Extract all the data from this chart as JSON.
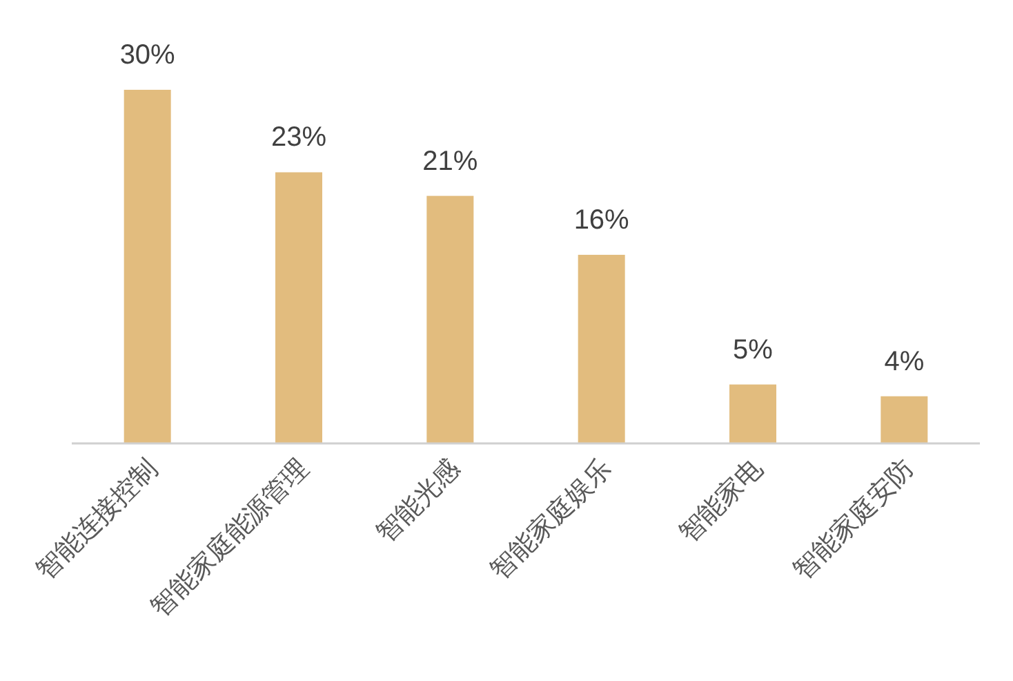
{
  "chart_data": {
    "type": "bar",
    "categories": [
      "智能连接控制",
      "智能家庭能源管理",
      "智能光感",
      "智能家庭娱乐",
      "智能家电",
      "智能家庭安防"
    ],
    "values": [
      30,
      23,
      21,
      16,
      5,
      4
    ],
    "value_labels": [
      "30%",
      "23%",
      "21%",
      "16%",
      "5%",
      "4%"
    ],
    "color": "#e2bc7e"
  }
}
